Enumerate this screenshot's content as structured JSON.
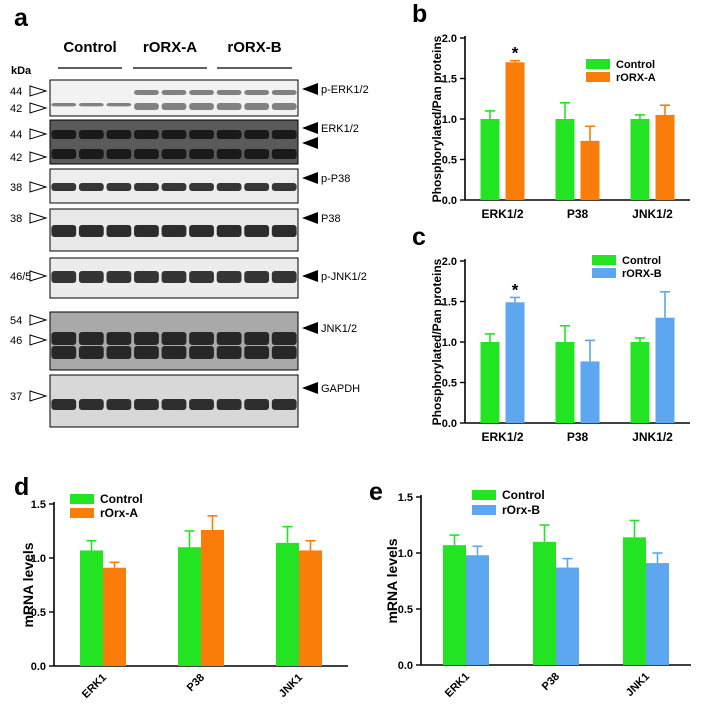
{
  "figure": {
    "panels": {
      "a": "a",
      "b": "b",
      "c": "c",
      "d": "d",
      "e": "e"
    }
  },
  "blot": {
    "unit": "kDa",
    "groups": [
      "Control",
      "rORX-A",
      "rORX-B"
    ],
    "lanes_per_group": 3,
    "strips": [
      {
        "label": "p-ERK1/2",
        "markers": [
          "44",
          "42"
        ],
        "bg": "#f2f2f2",
        "band": "#6d6d6d"
      },
      {
        "label": "ERK1/2",
        "markers": [
          "44",
          "42"
        ],
        "bg": "#5a5a5a",
        "band": "#0f0f0f"
      },
      {
        "label": "p-P38",
        "markers": [
          "38"
        ],
        "bg": "#ededed",
        "band": "#151515"
      },
      {
        "label": "P38",
        "markers": [
          "38"
        ],
        "bg": "#e8e8e8",
        "band": "#0a0a0a"
      },
      {
        "label": "p-JNK1/2",
        "markers": [
          "46/54"
        ],
        "bg": "#ececec",
        "band": "#151515"
      },
      {
        "label": "JNK1/2",
        "markers": [
          "54",
          "46"
        ],
        "bg": "#a9a9a9",
        "band": "#101010"
      },
      {
        "label": "GAPDH",
        "markers": [
          "37"
        ],
        "bg": "#d8d8d8",
        "band": "#101010"
      }
    ]
  },
  "colors": {
    "control": "#22e422",
    "orx_a": "#fa7d0a",
    "orx_b": "#5ca7ef"
  },
  "chart_data": [
    {
      "panel": "b",
      "type": "bar",
      "categories": [
        "ERK1/2",
        "P38",
        "JNK1/2"
      ],
      "ylabel": "Phosphorylated/Pan proteins",
      "xlabel": "",
      "ylim": [
        0,
        2.0
      ],
      "yticks": [
        "0.0",
        "0.5",
        "1.0",
        "1.5",
        "2.0"
      ],
      "series": [
        {
          "name": "Control",
          "values": [
            1.0,
            1.0,
            1.0
          ],
          "errors": [
            0.1,
            0.2,
            0.05
          ]
        },
        {
          "name": "rORX-A",
          "values": [
            1.7,
            0.73,
            1.05
          ],
          "errors": [
            0.02,
            0.18,
            0.12
          ]
        }
      ],
      "annotations": [
        "*"
      ],
      "legend": "top-right"
    },
    {
      "panel": "c",
      "type": "bar",
      "categories": [
        "ERK1/2",
        "P38",
        "JNK1/2"
      ],
      "ylabel": "Phosphorylated/Pan proteins",
      "xlabel": "",
      "ylim": [
        0,
        2.0
      ],
      "yticks": [
        "0.0",
        "0.5",
        "1.0",
        "1.5",
        "2.0"
      ],
      "series": [
        {
          "name": "Control",
          "values": [
            1.0,
            1.0,
            1.0
          ],
          "errors": [
            0.1,
            0.2,
            0.05
          ]
        },
        {
          "name": "rORX-B",
          "values": [
            1.49,
            0.76,
            1.3
          ],
          "errors": [
            0.06,
            0.26,
            0.32
          ]
        }
      ],
      "annotations": [
        "*"
      ],
      "legend": "top-right"
    },
    {
      "panel": "d",
      "type": "bar",
      "categories": [
        "ERK1",
        "P38",
        "JNK1"
      ],
      "ylabel": "mRNA levels",
      "xlabel": "",
      "ylim": [
        0,
        1.5
      ],
      "yticks": [
        "0.0",
        "0.5",
        "1.0",
        "1.5"
      ],
      "series": [
        {
          "name": "Control",
          "values": [
            1.07,
            1.1,
            1.14
          ],
          "errors": [
            0.09,
            0.15,
            0.15
          ]
        },
        {
          "name": "rOrx-A",
          "values": [
            0.91,
            1.26,
            1.07
          ],
          "errors": [
            0.05,
            0.13,
            0.09
          ]
        }
      ],
      "annotations": [],
      "legend": "top-left"
    },
    {
      "panel": "e",
      "type": "bar",
      "categories": [
        "ERK1",
        "P38",
        "JNK1"
      ],
      "ylabel": "mRNA levels",
      "xlabel": "",
      "ylim": [
        0,
        1.5
      ],
      "yticks": [
        "0.0",
        "0.5",
        "1.0",
        "1.5"
      ],
      "series": [
        {
          "name": "Control",
          "values": [
            1.07,
            1.1,
            1.14
          ],
          "errors": [
            0.09,
            0.15,
            0.15
          ]
        },
        {
          "name": "rOrx-B",
          "values": [
            0.98,
            0.87,
            0.91
          ],
          "errors": [
            0.08,
            0.08,
            0.09
          ]
        }
      ],
      "annotations": [],
      "legend": "top-left"
    }
  ]
}
